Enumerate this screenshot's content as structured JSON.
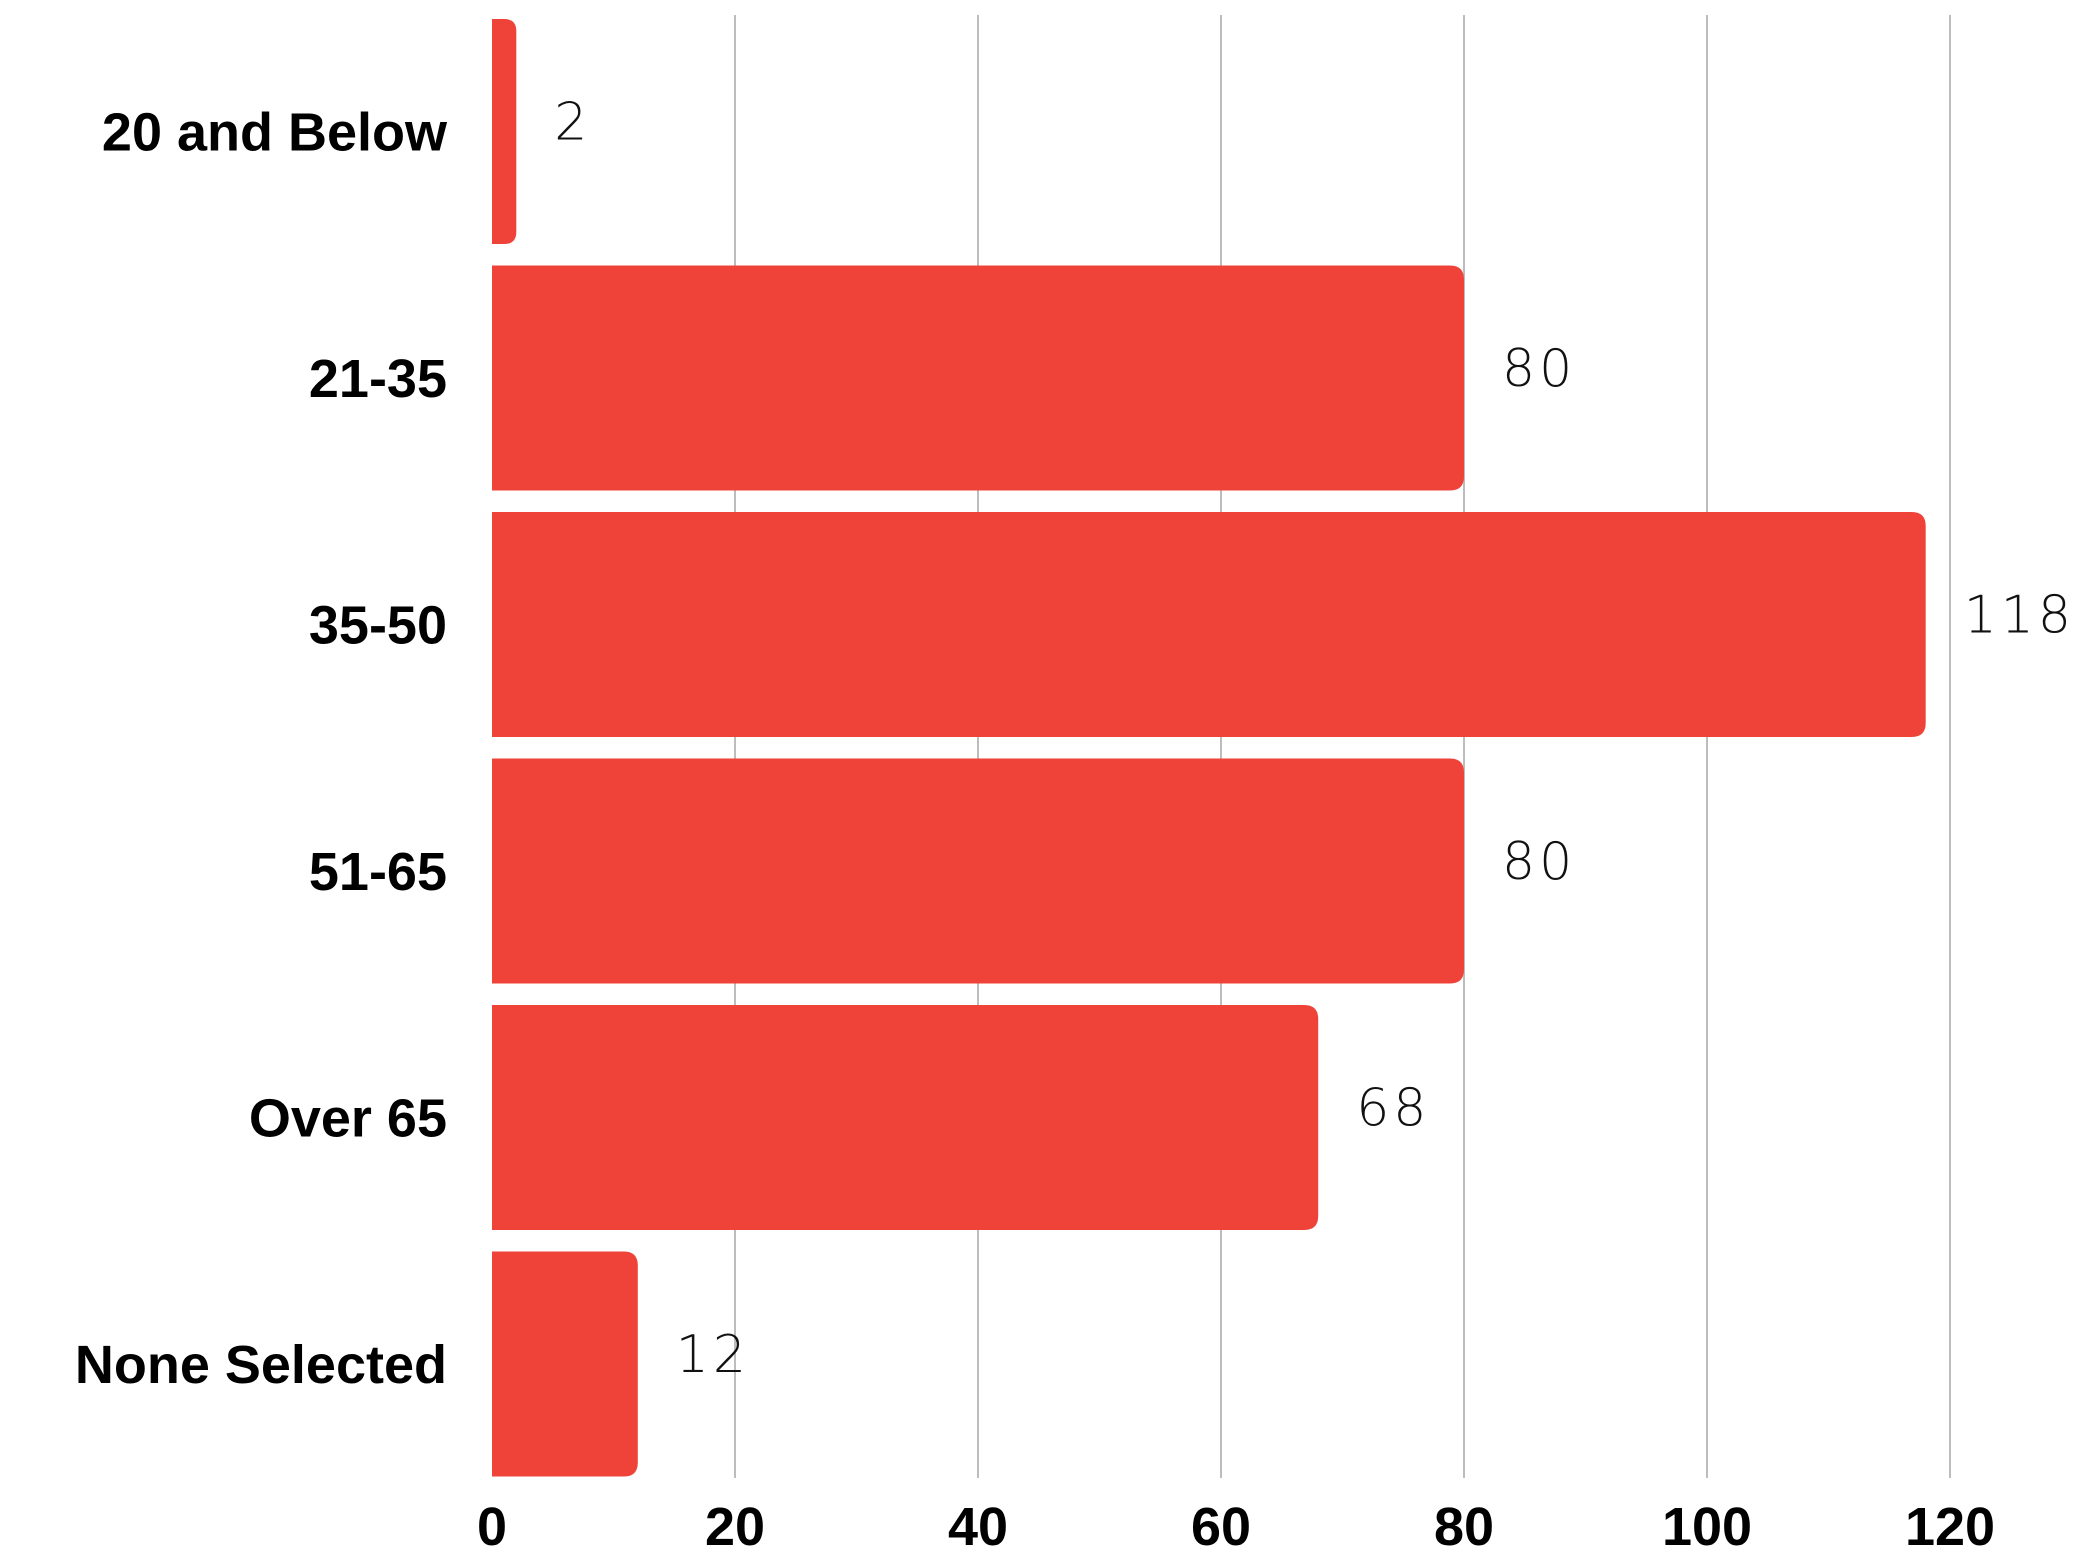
{
  "chart_data": {
    "type": "bar",
    "orientation": "horizontal",
    "categories": [
      "20 and Below",
      "21-35",
      "35-50",
      "51-65",
      "Over 65",
      "None Selected"
    ],
    "values": [
      2,
      80,
      118,
      80,
      68,
      12
    ],
    "xlim": [
      0,
      120
    ],
    "xticks": [
      0,
      20,
      40,
      60,
      80,
      100,
      120
    ],
    "grid": true,
    "bar_color": "#ef4238",
    "title": "",
    "xlabel": "",
    "ylabel": ""
  }
}
